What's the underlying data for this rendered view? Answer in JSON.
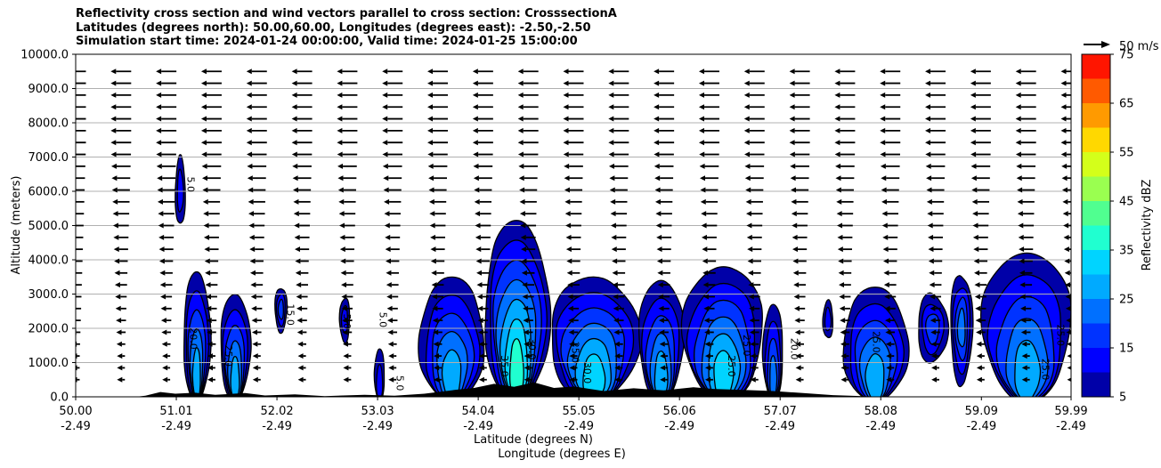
{
  "chart_data": {
    "type": "contourf",
    "title_lines": [
      "Reflectivity cross section and wind vectors parallel to cross section: CrosssectionA",
      "Latitudes (degrees north): 50.00,60.00, Longitudes (degrees east): -2.50,-2.50",
      "Simulation start time: 2024-01-24 00:00:00, Valid time: 2024-01-25 15:00:00"
    ],
    "xlabel": "Latitude (degrees N)",
    "xlabel2": "Longitude (degrees E)",
    "ylabel": "Altitude (meters)",
    "x_ticks": [
      {
        "lat": "50.00",
        "lon": "-2.49",
        "v": 50.0
      },
      {
        "lat": "51.01",
        "lon": "-2.49",
        "v": 51.01
      },
      {
        "lat": "52.02",
        "lon": "-2.49",
        "v": 52.02
      },
      {
        "lat": "53.03",
        "lon": "-2.49",
        "v": 53.03
      },
      {
        "lat": "54.04",
        "lon": "-2.49",
        "v": 54.04
      },
      {
        "lat": "55.05",
        "lon": "-2.49",
        "v": 55.05
      },
      {
        "lat": "56.06",
        "lon": "-2.49",
        "v": 56.06
      },
      {
        "lat": "57.07",
        "lon": "-2.49",
        "v": 57.07
      },
      {
        "lat": "58.08",
        "lon": "-2.49",
        "v": 58.08
      },
      {
        "lat": "59.09",
        "lon": "-2.49",
        "v": 59.09
      },
      {
        "lat": "59.99",
        "lon": "-2.49",
        "v": 59.99
      }
    ],
    "y_ticks": [
      "0.0",
      "1000.0",
      "2000.0",
      "3000.0",
      "4000.0",
      "5000.0",
      "6000.0",
      "7000.0",
      "8000.0",
      "9000.0",
      "10000.0"
    ],
    "xlim": [
      50.0,
      59.99
    ],
    "ylim": [
      0,
      10000
    ],
    "grid": "horizontal",
    "colorbar": {
      "label": "Reflectivity dBZ",
      "levels": [
        5,
        10,
        15,
        20,
        25,
        30,
        35,
        40,
        45,
        50,
        55,
        60,
        65,
        70,
        75
      ],
      "tick_labels": [
        "5",
        "15",
        "25",
        "35",
        "45",
        "55",
        "65",
        "75"
      ],
      "colors": [
        "#0000a8",
        "#0000ff",
        "#0033ff",
        "#0070ff",
        "#00aaff",
        "#00d4ff",
        "#20ffd0",
        "#50ff90",
        "#9aff50",
        "#d4ff1a",
        "#ffd800",
        "#ff9a00",
        "#ff5a00",
        "#ff1500",
        "#a80000"
      ]
    },
    "reference_vector_label": "50 m/s",
    "wind_direction": "toward lower latitude (south) aloft, weakening toward surface",
    "echo_cells": [
      {
        "lat_range": [
          51.0,
          51.1
        ],
        "alt_range": [
          5000,
          7000
        ],
        "max_dbz": 10
      },
      {
        "lat_range": [
          51.08,
          51.35
        ],
        "alt_range": [
          0,
          3650
        ],
        "max_dbz": 25
      },
      {
        "lat_range": [
          51.45,
          51.75
        ],
        "alt_range": [
          0,
          3000
        ],
        "max_dbz": 25
      },
      {
        "lat_range": [
          52.0,
          52.12
        ],
        "alt_range": [
          1900,
          3200
        ],
        "max_dbz": 15
      },
      {
        "lat_range": [
          52.65,
          52.75
        ],
        "alt_range": [
          1600,
          2900
        ],
        "max_dbz": 10
      },
      {
        "lat_range": [
          53.0,
          53.1
        ],
        "alt_range": [
          0,
          1400
        ],
        "max_dbz": 10
      },
      {
        "lat_range": [
          53.45,
          54.1
        ],
        "alt_range": [
          0,
          3500
        ],
        "max_dbz": 25
      },
      {
        "lat_range": [
          54.1,
          54.75
        ],
        "alt_range": [
          0,
          5150
        ],
        "max_dbz": 35
      },
      {
        "lat_range": [
          54.75,
          55.65
        ],
        "alt_range": [
          0,
          3500
        ],
        "max_dbz": 30
      },
      {
        "lat_range": [
          55.65,
          56.1
        ],
        "alt_range": [
          0,
          3400
        ],
        "max_dbz": 25
      },
      {
        "lat_range": [
          56.1,
          56.9
        ],
        "alt_range": [
          0,
          3800
        ],
        "max_dbz": 30
      },
      {
        "lat_range": [
          56.9,
          57.1
        ],
        "alt_range": [
          0,
          2700
        ],
        "max_dbz": 20
      },
      {
        "lat_range": [
          57.5,
          57.6
        ],
        "alt_range": [
          1700,
          2800
        ],
        "max_dbz": 10
      },
      {
        "lat_range": [
          57.7,
          58.35
        ],
        "alt_range": [
          0,
          3200
        ],
        "max_dbz": 25
      },
      {
        "lat_range": [
          58.45,
          58.75
        ],
        "alt_range": [
          1000,
          3000
        ],
        "max_dbz": 15
      },
      {
        "lat_range": [
          58.78,
          59.0
        ],
        "alt_range": [
          400,
          3600
        ],
        "max_dbz": 20
      },
      {
        "lat_range": [
          59.1,
          59.99
        ],
        "alt_range": [
          0,
          4200
        ],
        "max_dbz": 25
      }
    ],
    "contour_labels": [
      {
        "text": "5.0",
        "lat": 51.12,
        "alt": 6200
      },
      {
        "text": "20.0",
        "lat": 51.15,
        "alt": 1700
      },
      {
        "text": "25.0",
        "lat": 51.5,
        "alt": 1200
      },
      {
        "text": "15.0",
        "lat": 52.12,
        "alt": 2400
      },
      {
        "text": "5.0",
        "lat": 52.69,
        "alt": 2200
      },
      {
        "text": "5.0",
        "lat": 53.05,
        "alt": 2250
      },
      {
        "text": "5.0",
        "lat": 53.22,
        "alt": 400
      },
      {
        "text": "35.0",
        "lat": 54.27,
        "alt": 900
      },
      {
        "text": "30.0",
        "lat": 54.55,
        "alt": 1400
      },
      {
        "text": "25.0",
        "lat": 54.98,
        "alt": 1300
      },
      {
        "text": "30.0",
        "lat": 55.1,
        "alt": 700
      },
      {
        "text": "25.0",
        "lat": 56.55,
        "alt": 900
      },
      {
        "text": "25.0",
        "lat": 56.7,
        "alt": 1500
      },
      {
        "text": "20.0",
        "lat": 57.18,
        "alt": 1400
      },
      {
        "text": "25.0",
        "lat": 58.0,
        "alt": 1600
      },
      {
        "text": "25.0",
        "lat": 59.7,
        "alt": 800
      },
      {
        "text": "25.0",
        "lat": 59.85,
        "alt": 1800
      }
    ],
    "terrain_note": "black terrain silhouette along the surface"
  }
}
